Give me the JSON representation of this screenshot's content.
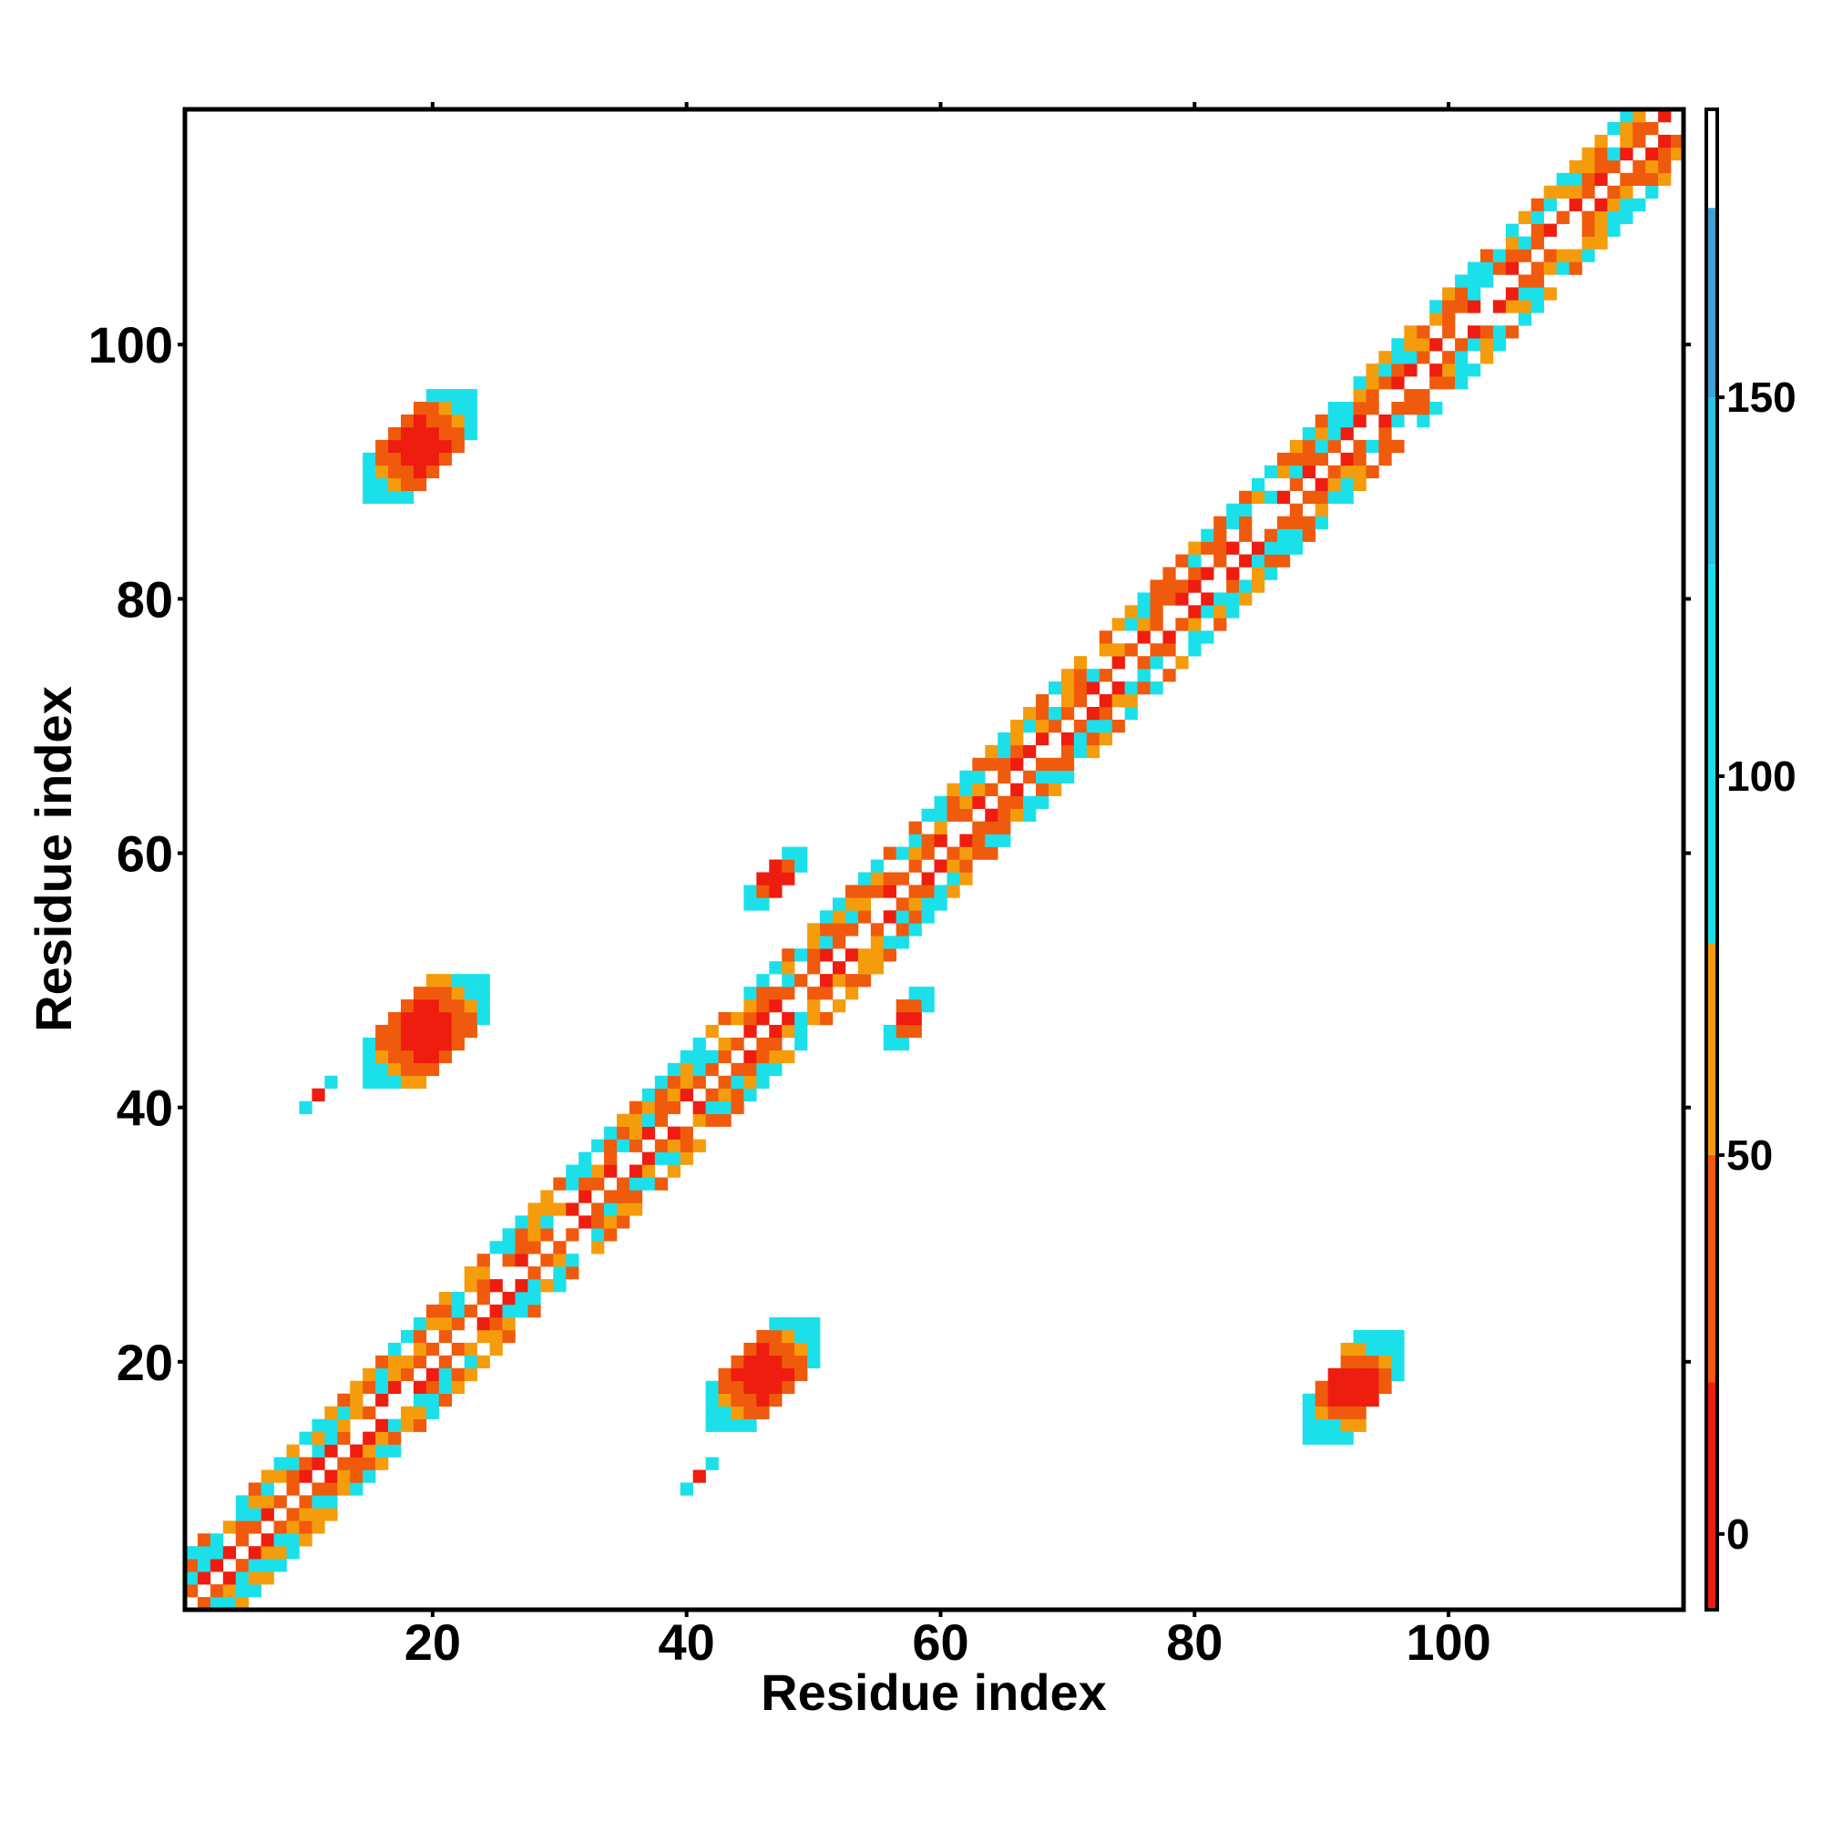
{
  "chart_data": {
    "type": "heatmap",
    "title": "",
    "xlabel": "Residue index",
    "ylabel": "Residue index",
    "xlim": [
      0.5,
      118.5
    ],
    "ylim": [
      0.5,
      118.5
    ],
    "x_ticks": [
      20,
      40,
      60,
      80,
      100
    ],
    "y_ticks": [
      20,
      40,
      60,
      80,
      100
    ],
    "x_tick_labels": [
      "20",
      "40",
      "60",
      "80",
      "100"
    ],
    "y_tick_labels": [
      "20",
      "40",
      "60",
      "80",
      "100"
    ],
    "colorbar": {
      "range": [
        -10,
        188
      ],
      "ticks": [
        0,
        50,
        100,
        150
      ],
      "tick_labels": [
        "0",
        "50",
        "100",
        "150"
      ],
      "bands": [
        {
          "from": -10,
          "to": 20,
          "color": "#ee1d0f"
        },
        {
          "from": 20,
          "to": 50,
          "color": "#f05a0c"
        },
        {
          "from": 50,
          "to": 78,
          "color": "#f59c0d"
        },
        {
          "from": 78,
          "to": 128,
          "color": "#1be0ea"
        },
        {
          "from": 128,
          "to": 150,
          "color": "#2cc4e2"
        },
        {
          "from": 150,
          "to": 175,
          "color": "#3fa1d4"
        },
        {
          "from": 175,
          "to": 188,
          "color": "#ffffff"
        }
      ]
    },
    "values_per_cell": "contact value at (residue i, residue j); null = no contact",
    "features": [
      {
        "kind": "diagonal_band",
        "from": 1,
        "to": 118,
        "halfwidth": 4
      },
      {
        "kind": "patch",
        "x": [
          15,
          23
        ],
        "y": [
          88,
          96
        ]
      },
      {
        "kind": "patch",
        "x": [
          15,
          24
        ],
        "y": [
          42,
          50
        ]
      },
      {
        "kind": "patch",
        "x": [
          42,
          50
        ],
        "y": [
          15,
          23
        ]
      },
      {
        "kind": "patch",
        "x": [
          89,
          96
        ],
        "y": [
          14,
          22
        ]
      },
      {
        "kind": "patch",
        "x": [
          45,
          49
        ],
        "y": [
          56,
          60
        ]
      },
      {
        "kind": "patch",
        "x": [
          56,
          59
        ],
        "y": [
          45,
          49
        ]
      },
      {
        "kind": "patch",
        "x": [
          10,
          12
        ],
        "y": [
          40,
          42
        ]
      },
      {
        "kind": "patch",
        "x": [
          40,
          42
        ],
        "y": [
          10,
          12
        ]
      }
    ]
  }
}
